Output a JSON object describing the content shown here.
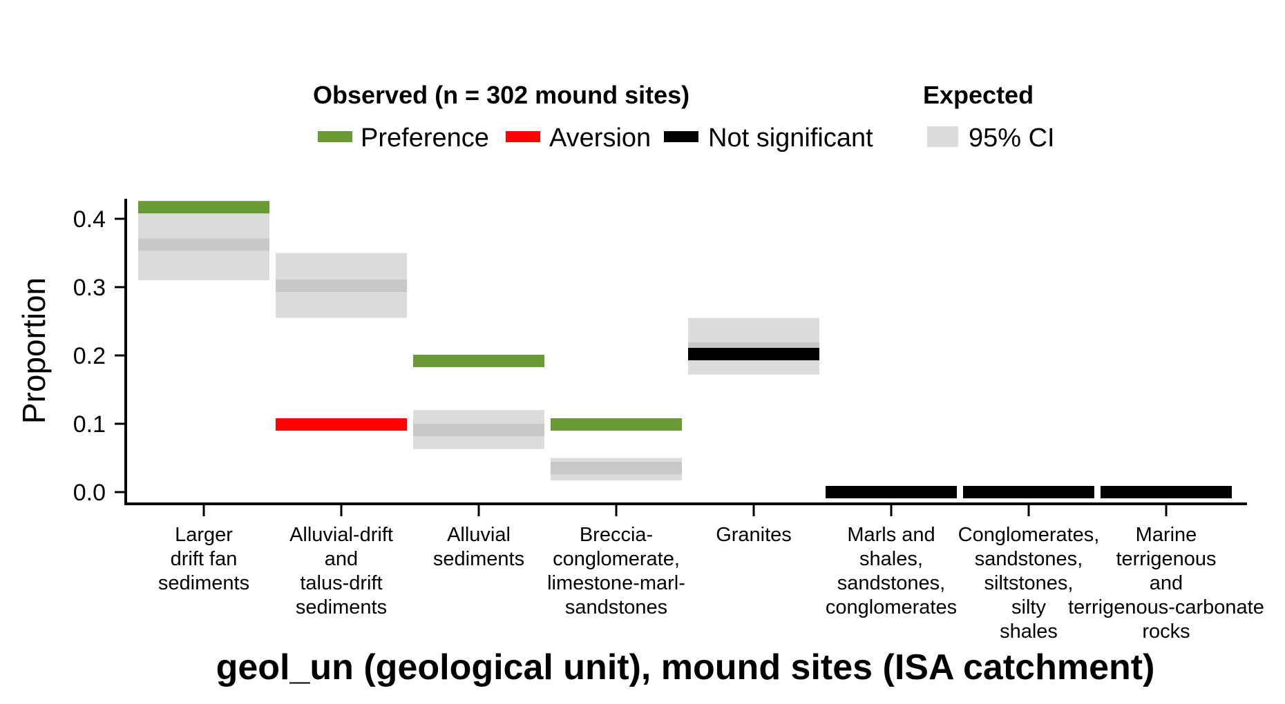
{
  "chart_data": {
    "type": "bar",
    "xlabel": "geol_un (geological unit), mound sites (ISA catchment)",
    "ylabel": "Proportion",
    "ylim": [
      0.0,
      0.42
    ],
    "yticks": [
      "0.0",
      "0.1",
      "0.2",
      "0.3",
      "0.4"
    ],
    "grid": false,
    "legend": {
      "position": "top",
      "observed_title": "Observed (n = 302 mound sites)",
      "expected_title": "Expected",
      "entries": [
        {
          "key": "preference",
          "label": "Preference",
          "color": "#6a9a35"
        },
        {
          "key": "aversion",
          "label": "Aversion",
          "color": "#ff0000"
        },
        {
          "key": "not_significant",
          "label": "Not significant",
          "color": "#000000"
        },
        {
          "key": "ci",
          "label": "95% CI",
          "color": "#dcdcdc"
        }
      ]
    },
    "categories": [
      {
        "label_lines": [
          "Larger",
          "drift fan",
          "sediments"
        ],
        "observed": 0.417,
        "status": "preference",
        "expected": 0.362,
        "ci": [
          0.31,
          0.41
        ]
      },
      {
        "label_lines": [
          "Alluvial-drift",
          "and",
          "talus-drift",
          "sediments"
        ],
        "observed": 0.099,
        "status": "aversion",
        "expected": 0.302,
        "ci": [
          0.255,
          0.35
        ]
      },
      {
        "label_lines": [
          "Alluvial",
          "sediments"
        ],
        "observed": 0.192,
        "status": "preference",
        "expected": 0.091,
        "ci": [
          0.063,
          0.12
        ]
      },
      {
        "label_lines": [
          "Breccia-",
          "conglomerate,",
          "limestone-marl-",
          "sandstones"
        ],
        "observed": 0.099,
        "status": "preference",
        "expected": 0.035,
        "ci": [
          0.017,
          0.05
        ]
      },
      {
        "label_lines": [
          "Granites"
        ],
        "observed": 0.202,
        "status": "not_significant",
        "expected": 0.21,
        "ci": [
          0.172,
          0.255
        ]
      },
      {
        "label_lines": [
          "Marls and",
          "shales,",
          "sandstones,",
          "conglomerates"
        ],
        "observed": 0.0,
        "status": "not_significant",
        "expected": null,
        "ci": null
      },
      {
        "label_lines": [
          "Conglomerates,",
          "sandstones,",
          "siltstones,",
          "silty",
          "shales"
        ],
        "observed": 0.0,
        "status": "not_significant",
        "expected": null,
        "ci": null
      },
      {
        "label_lines": [
          "Marine",
          "terrigenous",
          "and",
          "terrigenous-carbonate",
          "rocks"
        ],
        "observed": 0.0,
        "status": "not_significant",
        "expected": null,
        "ci": null
      }
    ]
  }
}
